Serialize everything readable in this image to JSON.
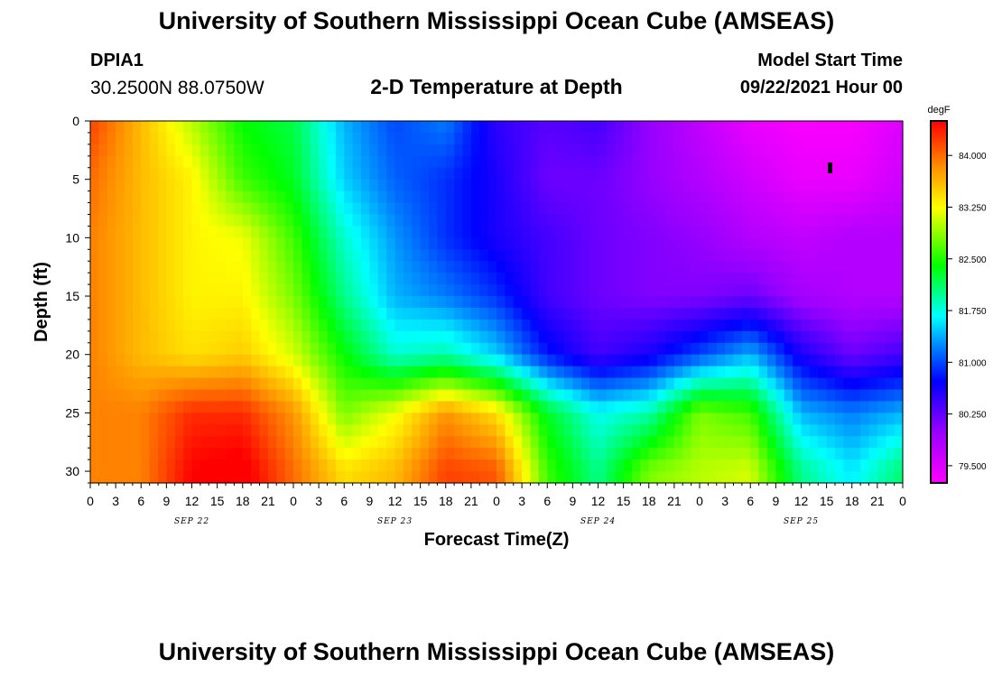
{
  "header": {
    "title": "University of Southern Mississippi Ocean Cube (AMSEAS)",
    "station_id": "DPIA1",
    "coordinates": "30.2500N  88.0750W",
    "plot_title": "2-D Temperature at Depth",
    "start_label": "Model Start Time",
    "start_value": "09/22/2021 Hour 00"
  },
  "footer": {
    "title": "University of Southern Mississippi Ocean Cube (AMSEAS)"
  },
  "chart_data": {
    "type": "heatmap",
    "title": "2-D Temperature at Depth",
    "xlabel": "Forecast Time(Z)",
    "ylabel": "Depth (ft)",
    "x_unit": "hours from model start",
    "xlim": [
      0,
      96
    ],
    "ylim": [
      0,
      31
    ],
    "y_reversed": true,
    "x_tick_labels": [
      "0",
      "3",
      "6",
      "9",
      "12",
      "15",
      "18",
      "21",
      "0",
      "3",
      "6",
      "9",
      "12",
      "15",
      "18",
      "21",
      "0",
      "3",
      "6",
      "9",
      "12",
      "15",
      "18",
      "21",
      "0",
      "3",
      "6",
      "9",
      "12",
      "15",
      "18",
      "21",
      "0"
    ],
    "x_date_labels": [
      {
        "label": "SEP 22",
        "hour": 12
      },
      {
        "label": "SEP 23",
        "hour": 36
      },
      {
        "label": "SEP 24",
        "hour": 60
      },
      {
        "label": "SEP 25",
        "hour": 84
      }
    ],
    "y_ticks": [
      0,
      5,
      10,
      15,
      20,
      25,
      30
    ],
    "colorbar": {
      "unit": "degF",
      "min": 79.25,
      "max": 84.5,
      "tick_values": [
        84.0,
        83.25,
        82.5,
        81.75,
        81.0,
        80.25,
        79.5
      ],
      "tick_labels": [
        "84.000",
        "83.250",
        "82.500",
        "81.750",
        "81.000",
        "80.250",
        "79.500"
      ]
    },
    "hours": [
      0,
      6,
      12,
      18,
      24,
      30,
      36,
      42,
      48,
      54,
      60,
      66,
      72,
      78,
      84,
      90,
      96
    ],
    "depths": [
      0,
      5,
      10,
      15,
      20,
      25,
      30
    ],
    "values": [
      [
        84.2,
        83.6,
        83.0,
        82.4,
        82.2,
        81.4,
        81.0,
        81.2,
        80.5,
        80.3,
        80.4,
        80.0,
        79.7,
        79.4,
        79.3,
        79.3,
        79.5
      ],
      [
        84.0,
        83.6,
        83.3,
        82.6,
        82.3,
        81.5,
        81.1,
        80.9,
        80.6,
        80.2,
        80.2,
        80.0,
        79.8,
        79.6,
        79.4,
        79.4,
        79.6
      ],
      [
        83.9,
        83.6,
        83.3,
        83.2,
        82.6,
        81.8,
        81.3,
        80.9,
        80.6,
        80.4,
        80.2,
        80.1,
        80.0,
        79.8,
        79.7,
        79.8,
        79.8
      ],
      [
        83.9,
        83.6,
        83.3,
        83.3,
        82.8,
        82.0,
        81.4,
        81.2,
        80.9,
        80.4,
        80.2,
        80.1,
        80.1,
        80.2,
        79.9,
        79.8,
        79.8
      ],
      [
        83.9,
        83.6,
        83.4,
        83.5,
        83.1,
        82.4,
        81.8,
        81.9,
        81.5,
        80.8,
        80.4,
        80.6,
        81.0,
        81.4,
        80.6,
        80.2,
        80.4
      ],
      [
        83.9,
        83.9,
        84.3,
        84.3,
        83.8,
        82.8,
        83.2,
        83.8,
        83.4,
        82.3,
        81.7,
        81.9,
        82.8,
        82.6,
        81.4,
        81.2,
        81.4
      ],
      [
        83.9,
        83.9,
        84.5,
        84.6,
        84.0,
        83.4,
        83.6,
        84.2,
        84.1,
        82.6,
        82.0,
        82.8,
        83.0,
        83.1,
        82.0,
        81.6,
        82.1
      ]
    ]
  }
}
